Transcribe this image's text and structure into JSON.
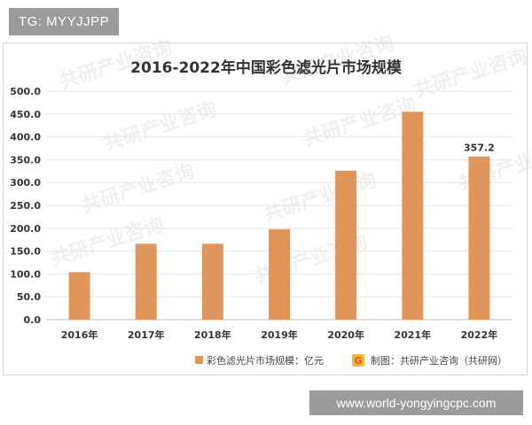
{
  "header": {
    "tag_text": "TG: MYYJJPP"
  },
  "footer": {
    "website": "www.world-yongyingcpc.com"
  },
  "watermark": {
    "text": "共研产业咨询"
  },
  "chart_data": {
    "type": "bar",
    "title": "2016-2022年中国彩色滤光片市场规模",
    "categories": [
      "2016年",
      "2017年",
      "2018年",
      "2019年",
      "2020年",
      "2021年",
      "2022年"
    ],
    "series": [
      {
        "name": "彩色滤光片市场规模：亿元",
        "values": [
          104,
          166,
          166,
          198,
          326,
          455,
          357.2
        ]
      }
    ],
    "data_labels": [
      "",
      "",
      "",
      "",
      "",
      "",
      "357.2"
    ],
    "yticks": [
      "0.0",
      "50.0",
      "100.0",
      "150.0",
      "200.0",
      "250.0",
      "300.0",
      "350.0",
      "400.0",
      "450.0",
      "500.0"
    ],
    "ylim": [
      0,
      500
    ],
    "bar_color": "#e0965a",
    "grid": true,
    "legend_position": "bottom",
    "source": "制图：共研产业咨询（共研网）",
    "source_icon": "brand-logo-icon"
  }
}
